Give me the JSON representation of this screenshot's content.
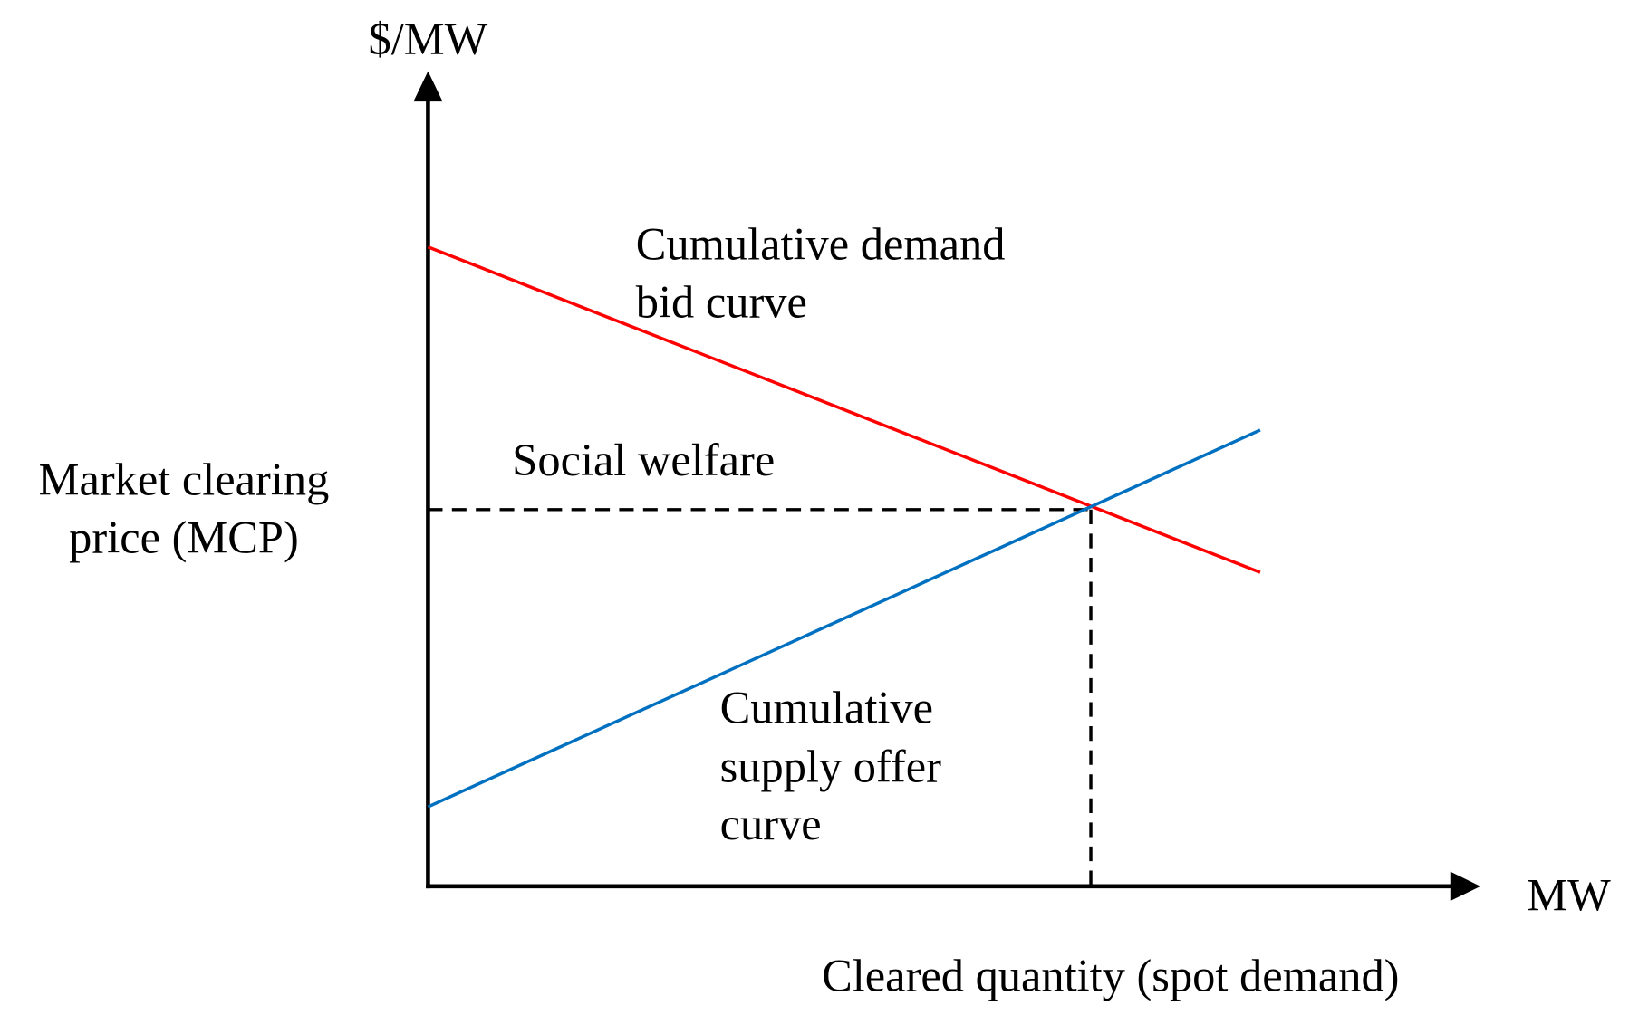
{
  "axes": {
    "y_label": "$/MW",
    "x_label": "MW",
    "price_label": [
      "Market clearing",
      "price (MCP)"
    ],
    "quantity_label": "Cleared quantity (spot demand)"
  },
  "curves": {
    "demand": [
      "Cumulative demand",
      "bid curve"
    ],
    "supply": [
      "Cumulative",
      "supply offer",
      "curve"
    ]
  },
  "region": {
    "label": "Social welfare"
  }
}
